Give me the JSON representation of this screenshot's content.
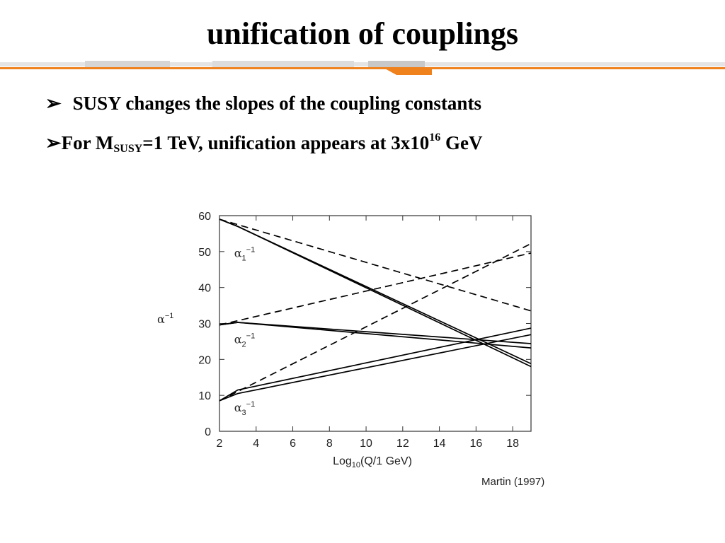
{
  "slide": {
    "title": "unification of couplings",
    "bullet1": {
      "marker": "➢",
      "text": "SUSY changes the slopes of the coupling constants"
    },
    "bullet2": {
      "marker": "➢",
      "pre": "For M",
      "sub": "SUSY",
      "mid": "=1 TeV, unification appears at 3x10",
      "sup": "16",
      "post": " GeV"
    }
  },
  "colors": {
    "accent_orange": "#f0821e",
    "banner_gray": "#cfcfcf",
    "line": "#000000"
  },
  "chart_data": {
    "type": "line",
    "xlabel": {
      "pre": "Log",
      "sub": "10",
      "post": "(Q/1 GeV)"
    },
    "ylabel": {
      "base": "α",
      "sup": "−1"
    },
    "xlim": [
      2,
      19
    ],
    "ylim": [
      0,
      60
    ],
    "xticks": [
      2,
      4,
      6,
      8,
      10,
      12,
      14,
      16,
      18
    ],
    "yticks": [
      0,
      10,
      20,
      30,
      40,
      50,
      60
    ],
    "credit": "Martin (1997)",
    "series_labels": [
      {
        "base": "α",
        "sub": "1",
        "sup": "−1",
        "x": 2.8,
        "y": 48.5
      },
      {
        "base": "α",
        "sub": "2",
        "sup": "−1",
        "x": 2.8,
        "y": 24.5
      },
      {
        "base": "α",
        "sub": "3",
        "sup": "−1",
        "x": 2.8,
        "y": 5.5
      }
    ],
    "series": [
      {
        "group": "alpha1",
        "style": "dashed",
        "points": [
          [
            2,
            59.0
          ],
          [
            19,
            33.5
          ]
        ]
      },
      {
        "group": "alpha2",
        "style": "dashed",
        "points": [
          [
            2,
            29.6
          ],
          [
            19,
            49.6
          ]
        ]
      },
      {
        "group": "alpha3",
        "style": "dashed",
        "points": [
          [
            2,
            8.5
          ],
          [
            19,
            52.2
          ]
        ]
      },
      {
        "group": "alpha1",
        "style": "solid",
        "points": [
          [
            2,
            59.0
          ],
          [
            3,
            57.0
          ],
          [
            19,
            18.0
          ]
        ]
      },
      {
        "group": "alpha1",
        "style": "solid",
        "points": [
          [
            2,
            59.0
          ],
          [
            3,
            57.0
          ],
          [
            19,
            18.8
          ]
        ]
      },
      {
        "group": "alpha2",
        "style": "solid",
        "points": [
          [
            2,
            29.6
          ],
          [
            3,
            30.3
          ],
          [
            19,
            23.2
          ]
        ]
      },
      {
        "group": "alpha2",
        "style": "solid",
        "points": [
          [
            2,
            29.6
          ],
          [
            3,
            30.3
          ],
          [
            19,
            24.4
          ]
        ]
      },
      {
        "group": "alpha3",
        "style": "solid",
        "points": [
          [
            2,
            8.5
          ],
          [
            3,
            11.5
          ],
          [
            19,
            28.7
          ]
        ]
      },
      {
        "group": "alpha3",
        "style": "solid",
        "points": [
          [
            2,
            8.5
          ],
          [
            3,
            10.5
          ],
          [
            19,
            26.9
          ]
        ]
      }
    ]
  }
}
